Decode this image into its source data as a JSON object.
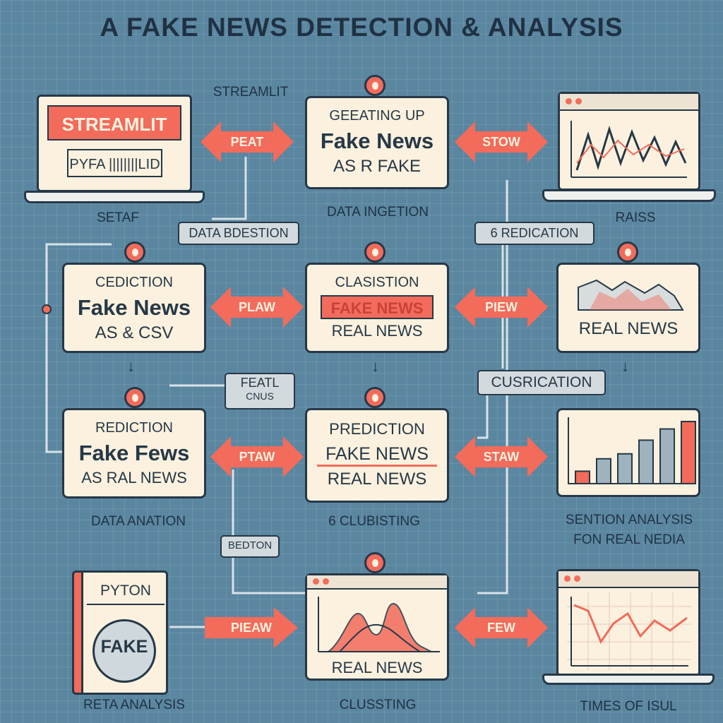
{
  "title": "A  FAKE NEWS DETECTION & ANALYSIS",
  "colors": {
    "background": "#5a86a0",
    "card": "#fbf1de",
    "accent": "#f26b5b",
    "ink": "#263847"
  },
  "laptop_top_left": {
    "banner": "STREAMLIT",
    "subtitle": "PYFA ||||||||LID",
    "caption": "SETAF"
  },
  "label_streamlit": "STREAMLIT",
  "card_top_center": {
    "line1": "GEEATING UP",
    "line2": "Fake News",
    "line3": "AS R FAKE"
  },
  "label_data_ingestion": "DATA INGETION",
  "laptop_top_right": {
    "caption": "RAISS"
  },
  "tag_data_bdestion": "DATA BDESTION",
  "tag_redication": "6 REDICATION",
  "card_mid_left": {
    "line1": "CEDICTION",
    "line2": "Fake News",
    "line3": "AS & CSV"
  },
  "card_mid_center": {
    "line1": "CLASISTION",
    "strip": "FAKE NEWS",
    "line3": "REAL NEWS"
  },
  "card_mid_right": {
    "line3": "REAL NEWS"
  },
  "tag_feat": {
    "line1": "FEATL",
    "line2": "CNUS"
  },
  "tag_cusrication": "CUSRICATION",
  "card_low_left": {
    "line1": "REDICTION",
    "line2": "Fake Fews",
    "line3": "AS RAL NEWS"
  },
  "card_low_center": {
    "line1": "PREDICTION",
    "line2": "FAKE NEWS",
    "line3": "REAL NEWS"
  },
  "chart_low_right": {
    "bar_values": [
      1,
      2,
      2.4,
      3.5,
      4.4,
      5
    ]
  },
  "label_data_anation": "DATA ANATION",
  "label_clubisting": "6 CLUBISTING",
  "label_sention": {
    "line1": "SENTION ANALYSIS",
    "line2": "FON REAL NEDIA"
  },
  "tag_bedton": "BEDTON",
  "book": {
    "top": "PYTON",
    "stamp": "FAKE"
  },
  "card_bottom_center": {
    "caption": "REAL NEWS"
  },
  "label_reta_analysis": "RETA ANALYSIS",
  "label_clussting": "CLUSSTING",
  "label_times": "TIMES OF ISUL",
  "arrows": {
    "a1": "PEAT",
    "a2": "STOW",
    "a3": "PLAW",
    "a4": "PIEW",
    "a5": "PTAW",
    "a6": "STAW",
    "a7": "PIEAW",
    "a8": "FEW"
  }
}
